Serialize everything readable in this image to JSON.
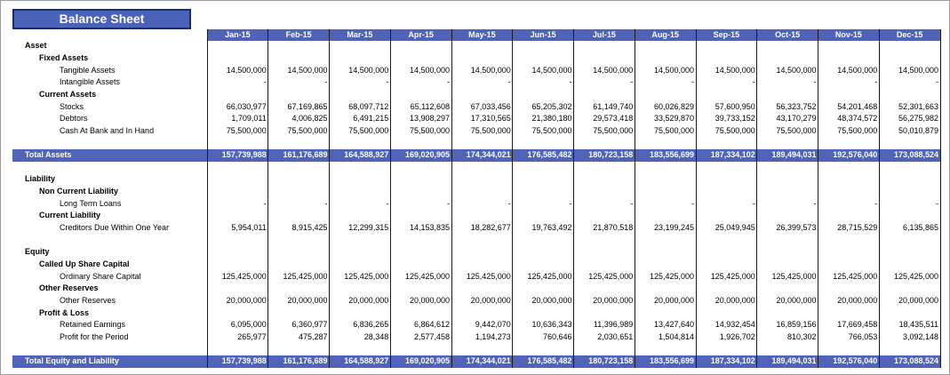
{
  "title": "Balance Sheet",
  "months": [
    "Jan-15",
    "Feb-15",
    "Mar-15",
    "Apr-15",
    "May-15",
    "Jun-15",
    "Jul-15",
    "Aug-15",
    "Sep-15",
    "Oct-15",
    "Nov-15",
    "Dec-15"
  ],
  "rows": [
    {
      "label": "Asset"
    },
    {
      "label": "Fixed Assets"
    },
    {
      "label": "Tangible Assets",
      "values": [
        "14,500,000",
        "14,500,000",
        "14,500,000",
        "14,500,000",
        "14,500,000",
        "14,500,000",
        "14,500,000",
        "14,500,000",
        "14,500,000",
        "14,500,000",
        "14,500,000",
        "14,500,000"
      ]
    },
    {
      "label": "Intangible Assets",
      "values": [
        "-",
        "-",
        "-",
        "-",
        "-",
        "-",
        "-",
        "-",
        "-",
        "-",
        "-",
        "-"
      ]
    },
    {
      "label": "Current Assets"
    },
    {
      "label": "Stocks",
      "values": [
        "66,030,977",
        "67,169,865",
        "68,097,712",
        "65,112,608",
        "67,033,456",
        "65,205,302",
        "61,149,740",
        "60,026,829",
        "57,600,950",
        "56,323,752",
        "54,201,468",
        "52,301,663"
      ]
    },
    {
      "label": "Debtors",
      "values": [
        "1,709,011",
        "4,006,825",
        "6,491,215",
        "13,908,297",
        "17,310,565",
        "21,380,180",
        "29,573,418",
        "33,529,870",
        "39,733,152",
        "43,170,279",
        "48,374,572",
        "56,275,982"
      ]
    },
    {
      "label": "Cash At Bank and In Hand",
      "values": [
        "75,500,000",
        "75,500,000",
        "75,500,000",
        "75,500,000",
        "75,500,000",
        "75,500,000",
        "75,500,000",
        "75,500,000",
        "75,500,000",
        "75,500,000",
        "75,500,000",
        "50,010,879"
      ]
    },
    {
      "label": "Total Assets",
      "values": [
        "157,739,988",
        "161,176,689",
        "164,588,927",
        "169,020,905",
        "174,344,021",
        "176,585,482",
        "180,723,158",
        "183,556,699",
        "187,334,102",
        "189,494,031",
        "192,576,040",
        "173,088,524"
      ]
    },
    {
      "label": "Liability"
    },
    {
      "label": "Non Current Liability"
    },
    {
      "label": "Long Term Loans",
      "values": [
        "-",
        "-",
        "-",
        "-",
        "-",
        "-",
        "-",
        "-",
        "-",
        "-",
        "-",
        "-"
      ]
    },
    {
      "label": "Current Liability"
    },
    {
      "label": "Creditors Due Within One Year",
      "values": [
        "5,954,011",
        "8,915,425",
        "12,299,315",
        "14,153,835",
        "18,282,677",
        "19,763,492",
        "21,870,518",
        "23,199,245",
        "25,049,945",
        "26,399,573",
        "28,715,529",
        "6,135,865"
      ]
    },
    {
      "label": "Equity"
    },
    {
      "label": "Called Up Share Capital"
    },
    {
      "label": "Ordinary Share Capital",
      "values": [
        "125,425,000",
        "125,425,000",
        "125,425,000",
        "125,425,000",
        "125,425,000",
        "125,425,000",
        "125,425,000",
        "125,425,000",
        "125,425,000",
        "125,425,000",
        "125,425,000",
        "125,425,000"
      ]
    },
    {
      "label": "Other Reserves"
    },
    {
      "label": "Other Reserves",
      "values": [
        "20,000,000",
        "20,000,000",
        "20,000,000",
        "20,000,000",
        "20,000,000",
        "20,000,000",
        "20,000,000",
        "20,000,000",
        "20,000,000",
        "20,000,000",
        "20,000,000",
        "20,000,000"
      ]
    },
    {
      "label": "Profit & Loss"
    },
    {
      "label": "Retained Earnings",
      "values": [
        "6,095,000",
        "6,360,977",
        "6,836,265",
        "6,864,612",
        "9,442,070",
        "10,636,343",
        "11,396,989",
        "13,427,640",
        "14,932,454",
        "16,859,156",
        "17,669,458",
        "18,435,511"
      ]
    },
    {
      "label": "Profit for the Period",
      "values": [
        "265,977",
        "475,287",
        "28,348",
        "2,577,458",
        "1,194,273",
        "760,646",
        "2,030,651",
        "1,504,814",
        "1,926,702",
        "810,302",
        "766,053",
        "3,092,148"
      ]
    },
    {
      "label": "Total Equity and Liability",
      "values": [
        "157,739,988",
        "161,176,689",
        "164,588,927",
        "169,020,905",
        "174,344,021",
        "176,585,482",
        "180,723,158",
        "183,556,699",
        "187,334,102",
        "189,494,031",
        "192,576,040",
        "173,088,524"
      ]
    }
  ]
}
